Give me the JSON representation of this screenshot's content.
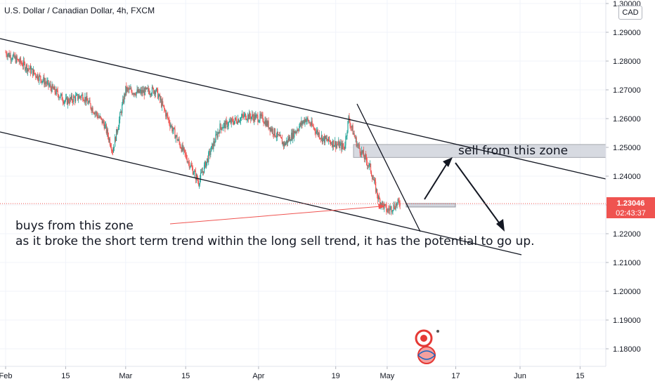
{
  "title": "U.S. Dollar / Canadian Dollar, 4h, FXCM",
  "currency": "CAD",
  "current_price": "1.23046",
  "countdown": "02:43:37",
  "annotations": {
    "buys_line1": "buys from this zone",
    "buys_line2": "as it broke the short term trend within the long sell trend, it has the potential to go up.",
    "sell_zone": "sell from this zone"
  },
  "colors": {
    "up": "#26a69a",
    "down": "#ef5350",
    "trendline": "#131722",
    "zone_fill": "#d1d4dc",
    "price_line": "#ef5350"
  },
  "chart_data": {
    "type": "candlestick",
    "title": "U.S. Dollar / Canadian Dollar, 4h, FXCM",
    "xlabel": "",
    "ylabel": "",
    "ylim": [
      1.175,
      1.301
    ],
    "x_ticks": [
      "Feb",
      "15",
      "Mar",
      "15",
      "Apr",
      "19",
      "May",
      "17",
      "Jun",
      "15"
    ],
    "y_ticks": [
      "1.30000",
      "1.29000",
      "1.28000",
      "1.27000",
      "1.26000",
      "1.25000",
      "1.24000",
      "1.23000",
      "1.22000",
      "1.21000",
      "1.20000",
      "1.19000",
      "1.18000"
    ],
    "price_path": [
      {
        "date": "Feb 1",
        "close": 1.283
      },
      {
        "date": "Feb 5",
        "close": 1.279
      },
      {
        "date": "Feb 10",
        "close": 1.273
      },
      {
        "date": "Feb 15",
        "close": 1.266
      },
      {
        "date": "Feb 19",
        "close": 1.268
      },
      {
        "date": "Feb 24",
        "close": 1.258
      },
      {
        "date": "Feb 26",
        "close": 1.249
      },
      {
        "date": "Mar 1",
        "close": 1.27
      },
      {
        "date": "Mar 4",
        "close": 1.269
      },
      {
        "date": "Mar 8",
        "close": 1.27
      },
      {
        "date": "Mar 12",
        "close": 1.256
      },
      {
        "date": "Mar 15",
        "close": 1.247
      },
      {
        "date": "Mar 18",
        "close": 1.238
      },
      {
        "date": "Mar 23",
        "close": 1.257
      },
      {
        "date": "Mar 29",
        "close": 1.261
      },
      {
        "date": "Apr 2",
        "close": 1.26
      },
      {
        "date": "Apr 7",
        "close": 1.251
      },
      {
        "date": "Apr 12",
        "close": 1.26
      },
      {
        "date": "Apr 16",
        "close": 1.253
      },
      {
        "date": "Apr 21",
        "close": 1.25
      },
      {
        "date": "Apr 22",
        "close": 1.26
      },
      {
        "date": "Apr 24",
        "close": 1.251
      },
      {
        "date": "Apr 27",
        "close": 1.243
      },
      {
        "date": "Apr 29",
        "close": 1.232
      },
      {
        "date": "May 1",
        "close": 1.228
      },
      {
        "date": "May 4",
        "close": 1.231
      }
    ]
  }
}
